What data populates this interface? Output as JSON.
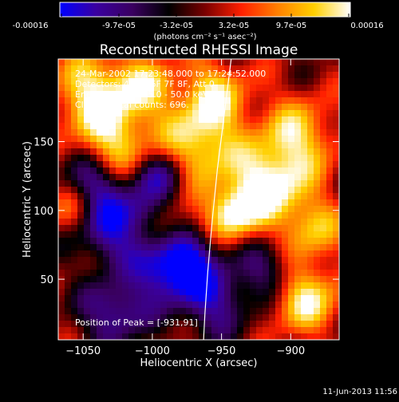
{
  "colorbar": {
    "tick_labels": [
      "-0.00016",
      "-9.7e-05",
      "-3.2e-05",
      "3.2e-05",
      "9.7e-05",
      "0.00016"
    ],
    "units": "(photons cm⁻² s⁻¹ asec⁻²)",
    "range": [
      -0.00016,
      0.00016
    ],
    "colors": [
      "#0000ff",
      "#3a00a0",
      "#3a0060",
      "#000000",
      "#7a0000",
      "#ff2000",
      "#ff8000",
      "#ffd000",
      "#ffffff"
    ]
  },
  "chart_data": {
    "type": "heatmap",
    "title": "Reconstructed RHESSI Image",
    "xlabel": "Heliocentric X (arcsec)",
    "ylabel": "Heliocentric Y (arcsec)",
    "xlim": [
      -1068,
      -865
    ],
    "ylim": [
      6,
      210
    ],
    "x_ticks": [
      -1050,
      -1000,
      -950,
      -900
    ],
    "y_ticks": [
      50,
      100,
      150
    ],
    "x_tick_labels": [
      "−1050",
      "−1000",
      "−950",
      "−900"
    ],
    "y_tick_labels": [
      "50",
      "100",
      "150"
    ],
    "grid": false,
    "limb_curve_x": [
      -943,
      -948,
      -953,
      -957,
      -960,
      -962,
      -963
    ],
    "limb_curve_y": [
      210,
      170,
      130,
      90,
      55,
      25,
      6
    ],
    "peak": [
      -931,
      91
    ]
  },
  "annotations": {
    "time_range": "24-Mar-2002 17:23:48.000 to 17:24:52.000",
    "detectors": "Detectors: 4F 5F 6F 7F 8F, Att 0",
    "energy": "Energy Range: 25.0 - 50.0 keV",
    "clean": "Clean    Total counts: 696.",
    "peak_position": "Position of Peak = [-931,91]"
  },
  "footer_date": "11-Jun-2013 11:56"
}
